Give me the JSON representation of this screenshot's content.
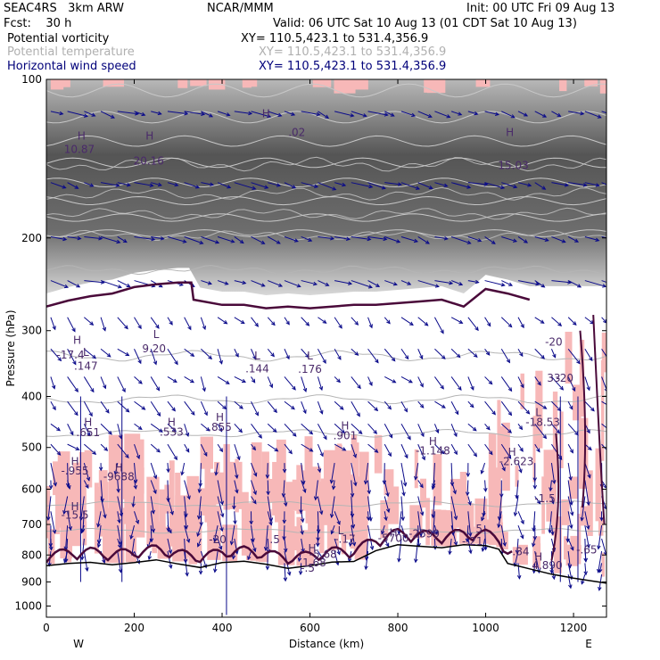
{
  "header": {
    "model": "SEAC4RS   3km ARW",
    "org": "NCAR/MMM",
    "init": "Init: 00 UTC Fri 09 Aug 13",
    "fcst": "Fcst:    30 h",
    "valid": "Valid: 06 UTC Sat 10 Aug 13 (01 CDT Sat 10 Aug 13)",
    "fields": [
      {
        "name": "Potential vorticity",
        "xy": "XY= 110.5,423.1 to 531.4,356.9"
      },
      {
        "name": "Potential temperature",
        "xy": "XY= 110.5,423.1 to 531.4,356.9"
      },
      {
        "name": "Horizontal wind speed",
        "xy": "XY= 110.5,423.1 to 531.4,356.9"
      }
    ]
  },
  "colors": {
    "pv_fill": "#f7b8b8",
    "pv_contour": "#4a0a3a",
    "theta": "#b5b5b5",
    "wind": "#0a0a8a",
    "terrain": "#000000"
  },
  "chart_data": {
    "type": "cross-section",
    "xlabel": "Distance (km)",
    "ylabel": "Pressure (hPa)",
    "xlim": [
      0,
      1275
    ],
    "ylim": [
      1050,
      100
    ],
    "y_scale": "log",
    "xticks": [
      0,
      200,
      400,
      600,
      800,
      1000,
      1200
    ],
    "yticks": [
      100,
      200,
      300,
      400,
      500,
      600,
      700,
      800,
      900,
      1000
    ],
    "end_labels": {
      "left": "W",
      "right": "E"
    },
    "terrain_surface": [
      [
        0,
        838
      ],
      [
        50,
        830
      ],
      [
        100,
        826
      ],
      [
        150,
        835
      ],
      [
        200,
        827
      ],
      [
        250,
        817
      ],
      [
        300,
        832
      ],
      [
        350,
        845
      ],
      [
        400,
        827
      ],
      [
        450,
        822
      ],
      [
        500,
        833
      ],
      [
        550,
        848
      ],
      [
        600,
        838
      ],
      [
        650,
        825
      ],
      [
        700,
        823
      ],
      [
        750,
        785
      ],
      [
        800,
        765
      ],
      [
        850,
        770
      ],
      [
        900,
        775
      ],
      [
        950,
        765
      ],
      [
        1000,
        768
      ],
      [
        1030,
        780
      ],
      [
        1050,
        830
      ],
      [
        1100,
        850
      ],
      [
        1150,
        870
      ],
      [
        1200,
        885
      ],
      [
        1275,
        905
      ]
    ],
    "tropopause": [
      [
        0,
        270
      ],
      [
        50,
        263
      ],
      [
        100,
        258
      ],
      [
        150,
        255
      ],
      [
        200,
        248
      ],
      [
        250,
        245
      ],
      [
        300,
        243
      ],
      [
        330,
        243
      ],
      [
        335,
        262
      ],
      [
        400,
        268
      ],
      [
        450,
        268
      ],
      [
        500,
        272
      ],
      [
        550,
        270
      ],
      [
        600,
        272
      ],
      [
        650,
        270
      ],
      [
        700,
        268
      ],
      [
        750,
        268
      ],
      [
        800,
        266
      ],
      [
        850,
        264
      ],
      [
        900,
        262
      ],
      [
        950,
        270
      ],
      [
        1000,
        250
      ],
      [
        1050,
        255
      ],
      [
        1100,
        262
      ]
    ],
    "theta_levels": [
      [
        0,
        145
      ],
      [
        0,
        165
      ],
      [
        0,
        180
      ],
      [
        0,
        198
      ],
      [
        0,
        230
      ],
      [
        0,
        335
      ],
      [
        0,
        405
      ],
      [
        0,
        470
      ],
      [
        0,
        640
      ],
      [
        0,
        720
      ]
    ],
    "annotations": [
      {
        "text": "H",
        "x": 80,
        "p": 130
      },
      {
        "text": "10.87",
        "x": 75,
        "p": 138
      },
      {
        "text": "H",
        "x": 235,
        "p": 130
      },
      {
        "text": "20.16",
        "x": 233,
        "p": 145
      },
      {
        "text": "H",
        "x": 500,
        "p": 118
      },
      {
        "text": ".02",
        "x": 570,
        "p": 128
      },
      {
        "text": "H",
        "x": 1055,
        "p": 128
      },
      {
        "text": "15.03",
        "x": 1063,
        "p": 148
      },
      {
        "text": "H",
        "x": 70,
        "p": 318
      },
      {
        "text": "-17.4",
        "x": 55,
        "p": 339
      },
      {
        "text": "L",
        "x": 90,
        "p": 335
      },
      {
        "text": ".147",
        "x": 90,
        "p": 356
      },
      {
        "text": "L",
        "x": 250,
        "p": 310
      },
      {
        "text": "9.20",
        "x": 245,
        "p": 330
      },
      {
        "text": "L",
        "x": 480,
        "p": 340
      },
      {
        "text": ".144",
        "x": 480,
        "p": 360
      },
      {
        "text": "L",
        "x": 600,
        "p": 340
      },
      {
        "text": ".176",
        "x": 600,
        "p": 361
      },
      {
        "text": "-20",
        "x": 1155,
        "p": 320
      },
      {
        "text": "33",
        "x": 1155,
        "p": 375
      },
      {
        "text": "-20",
        "x": 1180,
        "p": 375
      },
      {
        "text": "H",
        "x": 95,
        "p": 455
      },
      {
        "text": ".651",
        "x": 95,
        "p": 476
      },
      {
        "text": "H",
        "x": 285,
        "p": 455
      },
      {
        "text": ".533",
        "x": 285,
        "p": 475
      },
      {
        "text": "H",
        "x": 395,
        "p": 445
      },
      {
        "text": ".855",
        "x": 395,
        "p": 465
      },
      {
        "text": "H",
        "x": 680,
        "p": 462
      },
      {
        "text": ".901",
        "x": 680,
        "p": 482
      },
      {
        "text": "L",
        "x": 1120,
        "p": 436
      },
      {
        "text": "-18.53",
        "x": 1130,
        "p": 455
      },
      {
        "text": "H",
        "x": 880,
        "p": 495
      },
      {
        "text": "-1.148",
        "x": 880,
        "p": 515
      },
      {
        "text": "H",
        "x": 1060,
        "p": 518
      },
      {
        "text": "-2.623",
        "x": 1070,
        "p": 540
      },
      {
        "text": "H",
        "x": 65,
        "p": 540
      },
      {
        "text": "-.955",
        "x": 65,
        "p": 563
      },
      {
        "text": "H",
        "x": 165,
        "p": 555
      },
      {
        "text": "-9688",
        "x": 165,
        "p": 577
      },
      {
        "text": "-1.5",
        "x": 1135,
        "p": 635
      },
      {
        "text": "H",
        "x": 65,
        "p": 658
      },
      {
        "text": "-15.5",
        "x": 65,
        "p": 682
      },
      {
        "text": "L",
        "x": 670,
        "p": 730
      },
      {
        "text": "H",
        "x": 790,
        "p": 738
      },
      {
        "text": "-5700",
        "x": 790,
        "p": 755
      },
      {
        "text": "-2599",
        "x": 860,
        "p": 740
      },
      {
        "text": "5",
        "x": 985,
        "p": 725
      },
      {
        "text": "-20",
        "x": 390,
        "p": 760
      },
      {
        "text": "-.17",
        "x": 680,
        "p": 758
      },
      {
        "text": ".5",
        "x": 520,
        "p": 760
      },
      {
        "text": "H",
        "x": 605,
        "p": 790
      },
      {
        "text": "-5.68",
        "x": 630,
        "p": 810
      },
      {
        "text": "1.68",
        "x": 610,
        "p": 840
      },
      {
        "text": "-.5",
        "x": 595,
        "p": 860
      },
      {
        "text": ".84",
        "x": 1080,
        "p": 800
      },
      {
        "text": "-.65",
        "x": 1230,
        "p": 795
      },
      {
        "text": "H",
        "x": 1120,
        "p": 820
      },
      {
        "text": "4.890",
        "x": 1140,
        "p": 850
      },
      {
        "text": "-.21",
        "x": 970,
        "p": 765
      }
    ]
  }
}
